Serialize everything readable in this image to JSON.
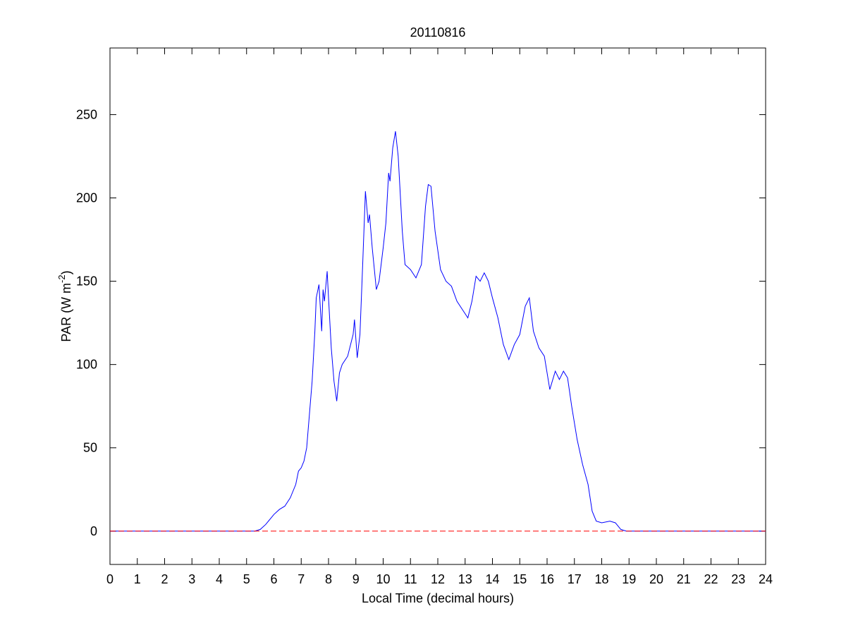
{
  "chart_data": {
    "type": "line",
    "title": "20110816",
    "xlabel": "Local Time (decimal hours)",
    "ylabel": [
      "PAR (W m",
      "-2",
      ")"
    ],
    "xlim": [
      0,
      24
    ],
    "xticks": [
      0,
      1,
      2,
      3,
      4,
      5,
      6,
      7,
      8,
      9,
      10,
      11,
      12,
      13,
      14,
      15,
      16,
      17,
      18,
      19,
      20,
      21,
      22,
      23,
      24
    ],
    "ylim": [
      -20,
      290
    ],
    "yticks": [
      0,
      50,
      100,
      150,
      200,
      250
    ],
    "series": [
      {
        "color": "#0000ff",
        "x": [
          0,
          5,
          5.3,
          5.5,
          5.7,
          5.9,
          6.0,
          6.2,
          6.4,
          6.6,
          6.8,
          6.9,
          7.0,
          7.1,
          7.2,
          7.3,
          7.4,
          7.5,
          7.55,
          7.65,
          7.75,
          7.8,
          7.85,
          7.95,
          8.0,
          8.1,
          8.2,
          8.3,
          8.4,
          8.5,
          8.7,
          8.9,
          8.95,
          9.05,
          9.15,
          9.25,
          9.35,
          9.45,
          9.5,
          9.6,
          9.75,
          9.85,
          10.0,
          10.1,
          10.2,
          10.25,
          10.35,
          10.45,
          10.55,
          10.7,
          10.8,
          11.0,
          11.2,
          11.4,
          11.55,
          11.65,
          11.75,
          11.9,
          12.1,
          12.3,
          12.5,
          12.7,
          12.9,
          13.1,
          13.25,
          13.4,
          13.55,
          13.7,
          13.85,
          14.0,
          14.2,
          14.4,
          14.6,
          14.8,
          15.0,
          15.2,
          15.35,
          15.5,
          15.7,
          15.9,
          16.1,
          16.3,
          16.45,
          16.6,
          16.75,
          16.9,
          17.1,
          17.3,
          17.5,
          17.65,
          17.8,
          18.0,
          18.3,
          18.5,
          18.7,
          18.9,
          24
        ],
        "values": [
          0,
          0,
          0,
          1,
          4,
          8,
          10,
          13,
          15,
          20,
          28,
          36,
          38,
          42,
          50,
          70,
          90,
          120,
          140,
          148,
          120,
          145,
          138,
          156,
          140,
          110,
          90,
          78,
          95,
          100,
          105,
          118,
          127,
          104,
          118,
          160,
          204,
          185,
          190,
          170,
          145,
          150,
          170,
          185,
          215,
          210,
          230,
          240,
          225,
          180,
          160,
          157,
          152,
          160,
          195,
          208,
          207,
          180,
          157,
          150,
          147,
          138,
          133,
          128,
          138,
          153,
          150,
          155,
          150,
          140,
          128,
          112,
          103,
          112,
          118,
          135,
          140,
          120,
          110,
          105,
          85,
          96,
          91,
          96,
          92,
          75,
          55,
          40,
          28,
          12,
          6,
          5,
          6,
          5,
          1,
          0,
          0
        ]
      }
    ],
    "reference_line": {
      "value": 0,
      "color": "#ff0000",
      "style": "dashed"
    }
  }
}
